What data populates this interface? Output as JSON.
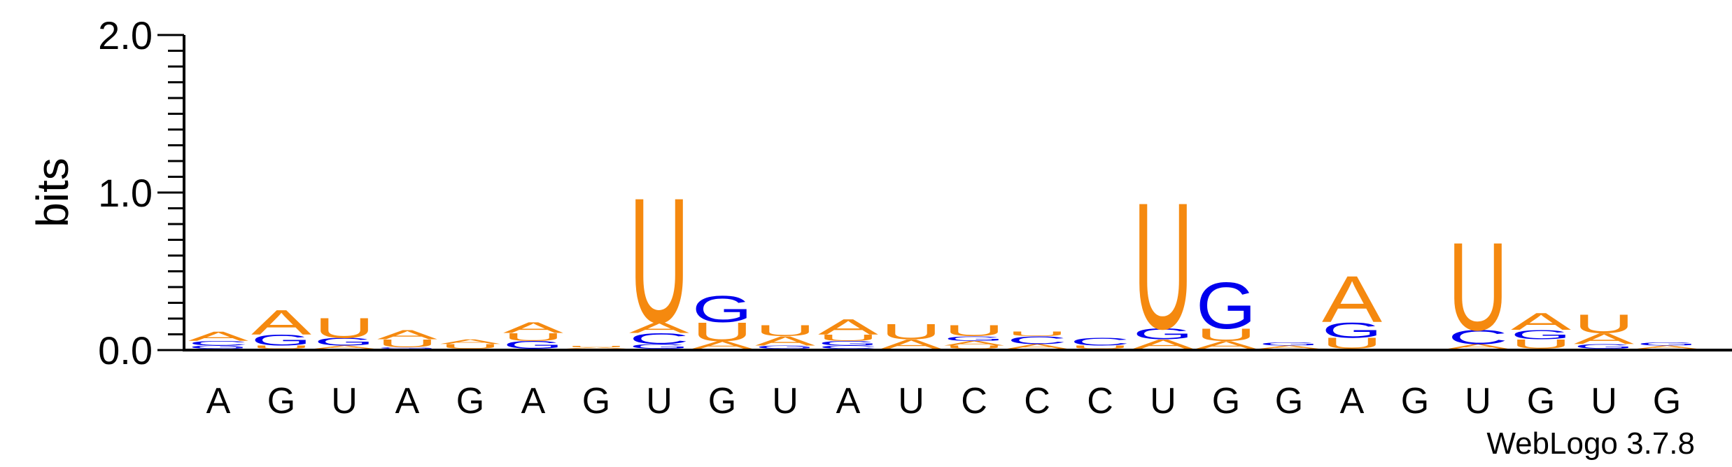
{
  "chart_data": {
    "type": "sequence-logo",
    "ylabel": "bits",
    "ylim": [
      0,
      2.0
    ],
    "yticks": [
      "0.0",
      "1.0",
      "2.0"
    ],
    "yticks_values": [
      0.0,
      1.0,
      2.0
    ],
    "xlabels": [
      "A",
      "G",
      "U",
      "A",
      "G",
      "A",
      "G",
      "U",
      "G",
      "U",
      "A",
      "U",
      "C",
      "C",
      "C",
      "U",
      "G",
      "G",
      "A",
      "G",
      "U",
      "G",
      "U",
      "G"
    ],
    "colors": {
      "A": "#f5890f",
      "U": "#f5890f",
      "G": "#0000ee",
      "C": "#0000ee"
    },
    "positions": [
      [
        {
          "l": "G",
          "h": 0.02
        },
        {
          "l": "C",
          "h": 0.03
        },
        {
          "l": "A",
          "h": 0.06
        }
      ],
      [
        {
          "l": "U",
          "h": 0.02
        },
        {
          "l": "G",
          "h": 0.07
        },
        {
          "l": "A",
          "h": 0.16
        }
      ],
      [
        {
          "l": "A",
          "h": 0.02
        },
        {
          "l": "G",
          "h": 0.05
        },
        {
          "l": "U",
          "h": 0.13
        }
      ],
      [
        {
          "l": "G",
          "h": 0.01
        },
        {
          "l": "U",
          "h": 0.05
        },
        {
          "l": "A",
          "h": 0.06
        }
      ],
      [
        {
          "l": "U",
          "h": 0.03
        },
        {
          "l": "A",
          "h": 0.03
        }
      ],
      [
        {
          "l": "G",
          "h": 0.05
        },
        {
          "l": "U",
          "h": 0.05
        },
        {
          "l": "A",
          "h": 0.07
        }
      ],
      [
        {
          "l": "A",
          "h": 0.01
        },
        {
          "l": "U",
          "h": 0.01
        }
      ],
      [
        {
          "l": "G",
          "h": 0.03
        },
        {
          "l": "C",
          "h": 0.07
        },
        {
          "l": "A",
          "h": 0.07
        },
        {
          "l": "U",
          "h": 0.81
        }
      ],
      [
        {
          "l": "A",
          "h": 0.05
        },
        {
          "l": "U",
          "h": 0.12
        },
        {
          "l": "G",
          "h": 0.17
        }
      ],
      [
        {
          "l": "G",
          "h": 0.02
        },
        {
          "l": "A",
          "h": 0.06
        },
        {
          "l": "U",
          "h": 0.07
        }
      ],
      [
        {
          "l": "C",
          "h": 0.02
        },
        {
          "l": "G",
          "h": 0.03
        },
        {
          "l": "U",
          "h": 0.04
        },
        {
          "l": "A",
          "h": 0.1
        }
      ],
      [
        {
          "l": "A",
          "h": 0.06
        },
        {
          "l": "U",
          "h": 0.1
        }
      ],
      [
        {
          "l": "U",
          "h": 0.02
        },
        {
          "l": "A",
          "h": 0.03
        },
        {
          "l": "G",
          "h": 0.03
        },
        {
          "l": "U",
          "h": 0.07
        }
      ],
      [
        {
          "l": "A",
          "h": 0.03
        },
        {
          "l": "C",
          "h": 0.05
        },
        {
          "l": "U",
          "h": 0.03
        }
      ],
      [
        {
          "l": "U",
          "h": 0.02
        },
        {
          "l": "C",
          "h": 0.05
        }
      ],
      [
        {
          "l": "A",
          "h": 0.06
        },
        {
          "l": "G",
          "h": 0.07
        },
        {
          "l": "U",
          "h": 0.82
        }
      ],
      [
        {
          "l": "A",
          "h": 0.05
        },
        {
          "l": "U",
          "h": 0.08
        },
        {
          "l": "G",
          "h": 0.3
        }
      ],
      [
        {
          "l": "A",
          "h": 0.02
        },
        {
          "l": "G",
          "h": 0.02
        }
      ],
      [
        {
          "l": "U",
          "h": 0.07
        },
        {
          "l": "G",
          "h": 0.1
        },
        {
          "l": "A",
          "h": 0.3
        }
      ],
      [],
      [
        {
          "l": "A",
          "h": 0.03
        },
        {
          "l": "C",
          "h": 0.09
        },
        {
          "l": "U",
          "h": 0.57
        }
      ],
      [
        {
          "l": "U",
          "h": 0.06
        },
        {
          "l": "G",
          "h": 0.06
        },
        {
          "l": "A",
          "h": 0.11
        }
      ],
      [
        {
          "l": "G",
          "h": 0.03
        },
        {
          "l": "A",
          "h": 0.07
        },
        {
          "l": "U",
          "h": 0.12
        }
      ],
      [
        {
          "l": "A",
          "h": 0.02
        },
        {
          "l": "G",
          "h": 0.02
        }
      ]
    ]
  },
  "footer": {
    "version_label": "WebLogo 3.7.8"
  }
}
